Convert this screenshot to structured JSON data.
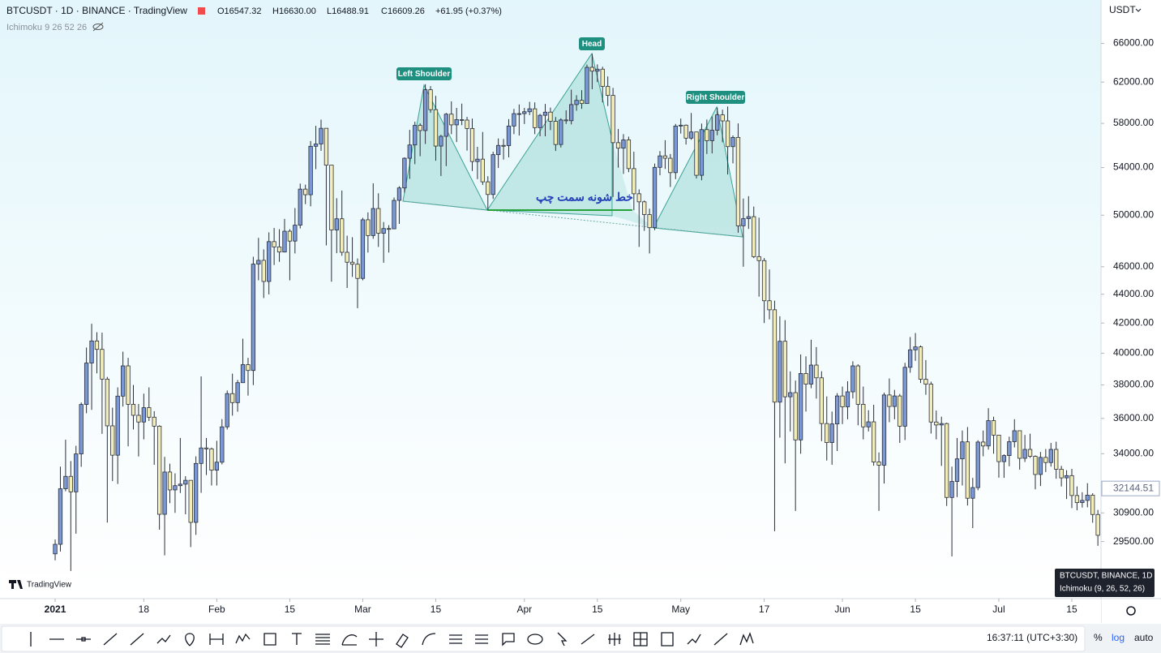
{
  "chart_data": {
    "type": "candlestick",
    "title": "BTCUSDT · 1D · BINANCE · TradingView",
    "ohlc_legend": [
      "O16547.32",
      "H16630.00",
      "L16488.91",
      "C16609.26",
      "+61.95 (+0.37%)"
    ],
    "indicator": "Ichimoku 9 26 52 26",
    "currency": "USDT",
    "scale": "log",
    "up_color": "#7a98d6",
    "down_color": "#f3edb9",
    "ylim": [
      26900,
      70800
    ],
    "yticks": [
      {
        "value": 29500,
        "label": "29500.00"
      },
      {
        "value": 30900,
        "label": "30900.00"
      },
      {
        "value": 34000,
        "label": "34000.00"
      },
      {
        "value": 36000,
        "label": "36000.00"
      },
      {
        "value": 38000,
        "label": "38000.00"
      },
      {
        "value": 40000,
        "label": "40000.00"
      },
      {
        "value": 42000,
        "label": "42000.00"
      },
      {
        "value": 44000,
        "label": "44000.00"
      },
      {
        "value": 46000,
        "label": "46000.00"
      },
      {
        "value": 50000,
        "label": "50000.00"
      },
      {
        "value": 54000,
        "label": "54000.00"
      },
      {
        "value": 58000,
        "label": "58000.00"
      },
      {
        "value": 62000,
        "label": "62000.00"
      },
      {
        "value": 66000,
        "label": "66000.00"
      }
    ],
    "price_marker": 32144.51,
    "xlim": [
      -10.58,
      200.6
    ],
    "xticks": [
      {
        "value": 0,
        "label": "2021"
      },
      {
        "value": 17,
        "label": "18"
      },
      {
        "value": 31,
        "label": "Feb"
      },
      {
        "value": 45,
        "label": "15"
      },
      {
        "value": 59,
        "label": "Mar"
      },
      {
        "value": 73,
        "label": "15"
      },
      {
        "value": 90,
        "label": "Apr"
      },
      {
        "value": 104,
        "label": "15"
      },
      {
        "value": 120,
        "label": "May"
      },
      {
        "value": 136,
        "label": "17"
      },
      {
        "value": 151,
        "label": "Jun"
      },
      {
        "value": 165,
        "label": "15"
      },
      {
        "value": 181,
        "label": "Jul"
      },
      {
        "value": 195,
        "label": "15"
      }
    ],
    "annotations": [
      "Left Shoulder",
      "Head",
      "Right Shoulder",
      "خط شونه سمت چپ"
    ],
    "tooltip": [
      "BTCUSDT, BINANCE, 1D",
      "Ichimoku (9, 26, 52, 26)"
    ],
    "watermark": "TradingView",
    "status_bar": [
      "16:37:11 (UTC+3:30)",
      "%",
      "log",
      "auto"
    ],
    "candles": [
      [
        28920,
        29600,
        28620,
        29370
      ],
      [
        29370,
        33300,
        29030,
        32130
      ],
      [
        32130,
        34780,
        32000,
        32780
      ],
      [
        32780,
        33600,
        28130,
        31970
      ],
      [
        31970,
        34440,
        29880,
        33990
      ],
      [
        33990,
        36940,
        33290,
        36820
      ],
      [
        36820,
        40370,
        36300,
        39370
      ],
      [
        39370,
        41950,
        36500,
        40800
      ],
      [
        40800,
        41380,
        38720,
        40250
      ],
      [
        40250,
        41350,
        35110,
        38360
      ],
      [
        38360,
        38500,
        30420,
        35570
      ],
      [
        35570,
        36630,
        32530,
        33920
      ],
      [
        33920,
        37850,
        32380,
        37320
      ],
      [
        37320,
        40100,
        36700,
        39190
      ],
      [
        39190,
        39700,
        34410,
        36830
      ],
      [
        36830,
        38000,
        35360,
        36180
      ],
      [
        36180,
        36850,
        33850,
        35790
      ],
      [
        35790,
        37470,
        34800,
        36630
      ],
      [
        36630,
        37850,
        35850,
        36070
      ],
      [
        36070,
        36420,
        33400,
        35550
      ],
      [
        35550,
        35600,
        30070,
        30830
      ],
      [
        30830,
        33830,
        28850,
        33010
      ],
      [
        33010,
        33460,
        31390,
        32070
      ],
      [
        32070,
        32940,
        30900,
        32290
      ],
      [
        32290,
        34880,
        31910,
        32370
      ],
      [
        32370,
        32790,
        30830,
        32570
      ],
      [
        32570,
        32570,
        29240,
        30430
      ],
      [
        30430,
        33860,
        29820,
        33470
      ],
      [
        33470,
        38530,
        31920,
        34320
      ],
      [
        34320,
        34880,
        32850,
        34270
      ],
      [
        34270,
        34340,
        32300,
        33110
      ],
      [
        33110,
        34720,
        32300,
        33540
      ],
      [
        33540,
        35960,
        33420,
        35510
      ],
      [
        35510,
        37660,
        35360,
        37470
      ],
      [
        37470,
        38700,
        36160,
        36930
      ],
      [
        36930,
        38310,
        36390,
        38140
      ],
      [
        38140,
        40950,
        38140,
        39270
      ],
      [
        39270,
        39700,
        37350,
        38900
      ],
      [
        38900,
        46750,
        37990,
        46200
      ],
      [
        46200,
        48200,
        45000,
        46480
      ],
      [
        46480,
        47310,
        43730,
        44920
      ],
      [
        44920,
        48630,
        43990,
        47910
      ],
      [
        47910,
        48980,
        46130,
        47500
      ],
      [
        47500,
        48880,
        46370,
        47110
      ],
      [
        47110,
        49700,
        47080,
        48720
      ],
      [
        48720,
        48880,
        45000,
        47950
      ],
      [
        47950,
        50580,
        47000,
        49200
      ],
      [
        49200,
        52620,
        48940,
        52150
      ],
      [
        52150,
        52530,
        50900,
        51680
      ],
      [
        51680,
        56370,
        50720,
        55890
      ],
      [
        55890,
        57770,
        53860,
        56100
      ],
      [
        56100,
        58350,
        55480,
        57540
      ],
      [
        57540,
        57540,
        47620,
        54210
      ],
      [
        54210,
        54210,
        44900,
        48820
      ],
      [
        48820,
        51390,
        47020,
        49710
      ],
      [
        49710,
        52030,
        46820,
        47090
      ],
      [
        47090,
        48370,
        44450,
        46340
      ],
      [
        46340,
        48250,
        45250,
        46190
      ],
      [
        46190,
        46620,
        43020,
        45140
      ],
      [
        45140,
        49790,
        45000,
        49630
      ],
      [
        49630,
        50230,
        47070,
        48380
      ],
      [
        48380,
        52640,
        48130,
        50540
      ],
      [
        50540,
        51800,
        47500,
        48560
      ],
      [
        48560,
        49450,
        46300,
        48930
      ],
      [
        48930,
        49200,
        47070,
        48910
      ],
      [
        48910,
        51450,
        48910,
        51210
      ],
      [
        51210,
        52400,
        49300,
        52250
      ],
      [
        52250,
        54900,
        51850,
        54820
      ],
      [
        54820,
        57390,
        53020,
        56010
      ],
      [
        56010,
        58150,
        54300,
        57810
      ],
      [
        57810,
        58000,
        55000,
        57330
      ],
      [
        57330,
        61790,
        56100,
        61240
      ],
      [
        61240,
        61600,
        59000,
        59300
      ],
      [
        59300,
        60640,
        54600,
        55910
      ],
      [
        55910,
        56940,
        53270,
        56800
      ],
      [
        56800,
        58980,
        54130,
        58870
      ],
      [
        58870,
        60100,
        57000,
        57860
      ],
      [
        57860,
        59470,
        56270,
        58350
      ],
      [
        58350,
        59880,
        57830,
        58310
      ],
      [
        58310,
        58610,
        55500,
        57520
      ],
      [
        57520,
        58450,
        53700,
        54530
      ],
      [
        54530,
        55840,
        53000,
        54740
      ],
      [
        54740,
        57200,
        52500,
        52770
      ],
      [
        52770,
        53250,
        50440,
        51700
      ],
      [
        51700,
        55400,
        51330,
        55140
      ],
      [
        55140,
        56600,
        53960,
        55970
      ],
      [
        55970,
        56560,
        54700,
        55950
      ],
      [
        55950,
        58400,
        54900,
        57750
      ],
      [
        57750,
        59370,
        57000,
        58920
      ],
      [
        58920,
        59800,
        56870,
        58920
      ],
      [
        58920,
        59470,
        57940,
        59100
      ],
      [
        59100,
        60050,
        58780,
        59380
      ],
      [
        59380,
        60000,
        57000,
        57600
      ],
      [
        57600,
        58900,
        56800,
        58760
      ],
      [
        58760,
        59850,
        56800,
        59060
      ],
      [
        59060,
        59500,
        57370,
        58190
      ],
      [
        58190,
        58600,
        55470,
        56050
      ],
      [
        56050,
        58480,
        55780,
        58320
      ],
      [
        58320,
        59240,
        57950,
        58250
      ],
      [
        58250,
        61250,
        57900,
        59790
      ],
      [
        59790,
        60700,
        59200,
        60200
      ],
      [
        60200,
        61200,
        59380,
        59890
      ],
      [
        59890,
        63780,
        59870,
        63500
      ],
      [
        63500,
        64900,
        61300,
        63110
      ],
      [
        63110,
        63800,
        62000,
        63310
      ],
      [
        63310,
        63560,
        60000,
        61570
      ],
      [
        61570,
        62570,
        59650,
        60680
      ],
      [
        60680,
        61420,
        51500,
        56220
      ],
      [
        56220,
        57480,
        54000,
        55720
      ],
      [
        55720,
        57000,
        53450,
        56470
      ],
      [
        56470,
        56770,
        53600,
        53910
      ],
      [
        53910,
        55400,
        50400,
        51760
      ],
      [
        51760,
        52130,
        47500,
        51090
      ],
      [
        51090,
        51200,
        48750,
        50050
      ],
      [
        50050,
        50530,
        47000,
        49000
      ],
      [
        49000,
        54350,
        48800,
        54020
      ],
      [
        54020,
        55460,
        53330,
        55030
      ],
      [
        55030,
        56440,
        53880,
        54820
      ],
      [
        54820,
        55200,
        52330,
        53560
      ],
      [
        53560,
        57950,
        53000,
        57750
      ],
      [
        57750,
        58450,
        57050,
        57830
      ],
      [
        57830,
        57900,
        56050,
        56630
      ],
      [
        56630,
        58980,
        56480,
        57200
      ],
      [
        57200,
        57200,
        53050,
        53330
      ],
      [
        53330,
        57980,
        52900,
        57420
      ],
      [
        57420,
        58360,
        55200,
        56400
      ],
      [
        56400,
        58650,
        55250,
        57360
      ],
      [
        57360,
        59500,
        56900,
        58800
      ],
      [
        58800,
        59300,
        56250,
        58230
      ],
      [
        58230,
        59600,
        53400,
        55860
      ],
      [
        55860,
        56880,
        54370,
        56700
      ],
      [
        56700,
        58000,
        48600,
        49150
      ],
      [
        49150,
        51360,
        46000,
        49720
      ],
      [
        49720,
        51560,
        48900,
        49880
      ],
      [
        49880,
        50700,
        46650,
        46760
      ],
      [
        46760,
        49800,
        43830,
        46460
      ],
      [
        46460,
        46650,
        42000,
        43540
      ],
      [
        43540,
        45800,
        42250,
        42910
      ],
      [
        42910,
        43550,
        30000,
        36960
      ],
      [
        36960,
        42460,
        34900,
        40780
      ],
      [
        40780,
        42200,
        33480,
        37280
      ],
      [
        37280,
        38840,
        35250,
        37530
      ],
      [
        37530,
        38270,
        31000,
        34770
      ],
      [
        34770,
        39920,
        34000,
        38710
      ],
      [
        38710,
        39800,
        36400,
        38050
      ],
      [
        38050,
        40880,
        37800,
        39240
      ],
      [
        39240,
        40400,
        37170,
        38440
      ],
      [
        38440,
        38850,
        34700,
        35700
      ],
      [
        35700,
        37300,
        33630,
        34620
      ],
      [
        34620,
        36400,
        33400,
        35680
      ],
      [
        35680,
        37500,
        34150,
        37330
      ],
      [
        37330,
        37900,
        35670,
        36680
      ],
      [
        36680,
        38230,
        35950,
        37580
      ],
      [
        37580,
        39480,
        37180,
        39190
      ],
      [
        39190,
        39290,
        35600,
        36830
      ],
      [
        36830,
        37900,
        34800,
        35510
      ],
      [
        35510,
        36480,
        35250,
        35800
      ],
      [
        35800,
        36800,
        33350,
        33550
      ],
      [
        33550,
        34070,
        31000,
        33380
      ],
      [
        33380,
        37530,
        32400,
        37390
      ],
      [
        37390,
        38400,
        35780,
        36700
      ],
      [
        36700,
        37700,
        35950,
        37330
      ],
      [
        37330,
        37450,
        34600,
        35550
      ],
      [
        35550,
        39380,
        34760,
        39100
      ],
      [
        39100,
        41060,
        38760,
        40220
      ],
      [
        40220,
        41330,
        39510,
        40410
      ],
      [
        40410,
        40500,
        38120,
        38350
      ],
      [
        38350,
        39560,
        37400,
        38050
      ],
      [
        38050,
        38200,
        35130,
        35790
      ],
      [
        35790,
        36460,
        34800,
        35620
      ],
      [
        35620,
        36100,
        33340,
        35700
      ],
      [
        35700,
        35750,
        31250,
        31680
      ],
      [
        31680,
        33300,
        28800,
        32510
      ],
      [
        32510,
        34880,
        31700,
        33720
      ],
      [
        33720,
        35300,
        32300,
        34660
      ],
      [
        34660,
        35500,
        31270,
        31640
      ],
      [
        31640,
        32700,
        30150,
        32190
      ],
      [
        32190,
        34750,
        32050,
        34650
      ],
      [
        34650,
        35300,
        33860,
        34430
      ],
      [
        34430,
        36600,
        34230,
        35870
      ],
      [
        35870,
        36100,
        34000,
        35040
      ],
      [
        35040,
        35040,
        32710,
        33570
      ],
      [
        33570,
        33970,
        32700,
        33900
      ],
      [
        33900,
        34950,
        33320,
        34670
      ],
      [
        34670,
        35950,
        34350,
        35290
      ],
      [
        35290,
        35290,
        33140,
        33750
      ],
      [
        33750,
        35050,
        33550,
        34240
      ],
      [
        34240,
        35120,
        33770,
        33860
      ],
      [
        33860,
        33910,
        32100,
        32880
      ],
      [
        32880,
        34100,
        32270,
        33800
      ],
      [
        33800,
        34260,
        33010,
        33520
      ],
      [
        33520,
        34600,
        33300,
        34240
      ],
      [
        34240,
        34670,
        32660,
        33160
      ],
      [
        33160,
        33340,
        32250,
        32700
      ],
      [
        32700,
        33110,
        31600,
        32820
      ],
      [
        32820,
        33180,
        31140,
        31780
      ],
      [
        31780,
        32250,
        31030,
        31420
      ],
      [
        31420,
        31950,
        31170,
        31530
      ],
      [
        31530,
        32420,
        31180,
        31800
      ],
      [
        31800,
        31900,
        30410,
        30820
      ],
      [
        30820,
        31050,
        29300,
        29800
      ]
    ]
  }
}
